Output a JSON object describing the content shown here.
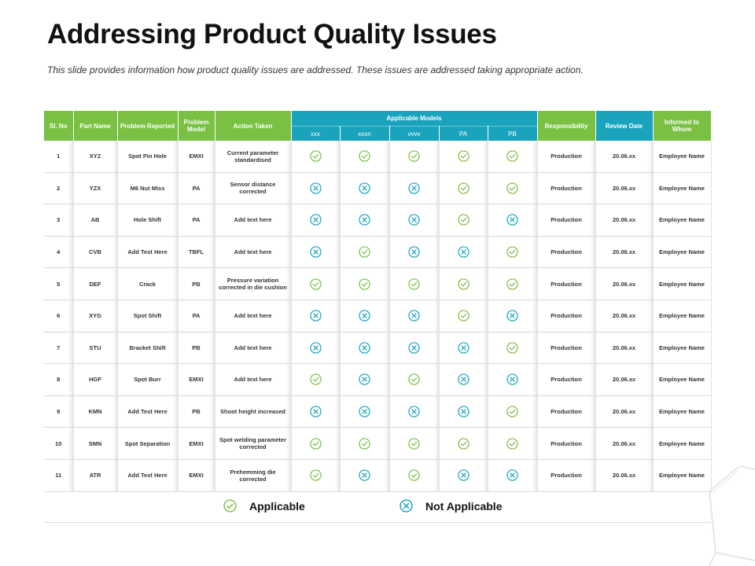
{
  "title": "Addressing Product Quality Issues",
  "subtitle": "This slide provides information how product quality issues are addressed. These issues are addressed taking appropriate action.",
  "headers": {
    "sl_no": "Sl. No",
    "part_name": "Part Name",
    "problem_reported": "Problem Reported",
    "problem_model": "Problem Model",
    "action_taken": "Action Taken",
    "applicable_models": "Applicable Models",
    "models": [
      "xxx",
      "xxxn",
      "vvvv",
      "PA",
      "PB"
    ],
    "responsibility": "Responsibility",
    "review_date": "Review Date",
    "informed_to_whom": "Informed to Whom"
  },
  "rows": [
    {
      "no": "1",
      "part": "XYZ",
      "problem": "Spot Pin Hole",
      "model": "EMXI",
      "action": "Current parameter standardised",
      "status": [
        "check",
        "check",
        "check",
        "check",
        "check"
      ],
      "responsibility": "Production",
      "date": "20.06.xx",
      "informed": "Employee Name"
    },
    {
      "no": "2",
      "part": "YZX",
      "problem": "M6 Nut Miss",
      "model": "PA",
      "action": "Sensor distance corrected",
      "status": [
        "cross",
        "cross",
        "cross",
        "check",
        "check"
      ],
      "responsibility": "Production",
      "date": "20.06.xx",
      "informed": "Employee Name"
    },
    {
      "no": "3",
      "part": "AB",
      "problem": "Hole Shift",
      "model": "PA",
      "action": "Add text here",
      "status": [
        "cross",
        "cross",
        "cross",
        "check",
        "cross"
      ],
      "responsibility": "Production",
      "date": "20.06.xx",
      "informed": "Employee Name"
    },
    {
      "no": "4",
      "part": "CVB",
      "problem": "Add Text Here",
      "model": "TBFL",
      "action": "Add text here",
      "status": [
        "cross",
        "check",
        "cross",
        "cross",
        "check"
      ],
      "responsibility": "Production",
      "date": "20.06.xx",
      "informed": "Employee Name"
    },
    {
      "no": "5",
      "part": "DEF",
      "problem": "Crack",
      "model": "PB",
      "action": "Pressure variation corrected in die cushion",
      "status": [
        "check",
        "check",
        "check",
        "check",
        "check"
      ],
      "responsibility": "Production",
      "date": "20.06.xx",
      "informed": "Employee Name"
    },
    {
      "no": "6",
      "part": "XYG",
      "problem": "Spot Shift",
      "model": "PA",
      "action": "Add text here",
      "status": [
        "cross",
        "cross",
        "cross",
        "check",
        "cross"
      ],
      "responsibility": "Production",
      "date": "20.06.xx",
      "informed": "Employee Name"
    },
    {
      "no": "7",
      "part": "STU",
      "problem": "Bracket Shift",
      "model": "PB",
      "action": "Add text here",
      "status": [
        "cross",
        "cross",
        "cross",
        "cross",
        "check"
      ],
      "responsibility": "Production",
      "date": "20.06.xx",
      "informed": "Employee Name"
    },
    {
      "no": "8",
      "part": "HGF",
      "problem": "Spot Burr",
      "model": "EMXI",
      "action": "Add text here",
      "status": [
        "check",
        "cross",
        "check",
        "cross",
        "cross"
      ],
      "responsibility": "Production",
      "date": "20.06.xx",
      "informed": "Employee Name"
    },
    {
      "no": "9",
      "part": "KMN",
      "problem": "Add Text Here",
      "model": "PB",
      "action": "Shoot height increased",
      "status": [
        "cross",
        "cross",
        "cross",
        "cross",
        "check"
      ],
      "responsibility": "Production",
      "date": "20.06.xx",
      "informed": "Employee Name"
    },
    {
      "no": "10",
      "part": "SMN",
      "problem": "Spot Separation",
      "model": "EMXI",
      "action": "Spot welding parameter corrected",
      "status": [
        "check",
        "check",
        "check",
        "check",
        "check"
      ],
      "responsibility": "Production",
      "date": "20.06.xx",
      "informed": "Employee Name"
    },
    {
      "no": "11",
      "part": "ATR",
      "problem": "Add Text Here",
      "model": "EMXI",
      "action": "Prehemming die corrected",
      "status": [
        "check",
        "cross",
        "check",
        "cross",
        "cross"
      ],
      "responsibility": "Production",
      "date": "20.06.xx",
      "informed": "Employee Name"
    }
  ],
  "legend": {
    "applicable": "Applicable",
    "not_applicable": "Not Applicable"
  },
  "colors": {
    "header_green": "#7ac143",
    "header_blue": "#1aa3bd",
    "check": "#7ac143",
    "cross": "#1aa3bd"
  },
  "icons": {
    "check": "check-circle-icon",
    "cross": "cross-circle-icon"
  }
}
